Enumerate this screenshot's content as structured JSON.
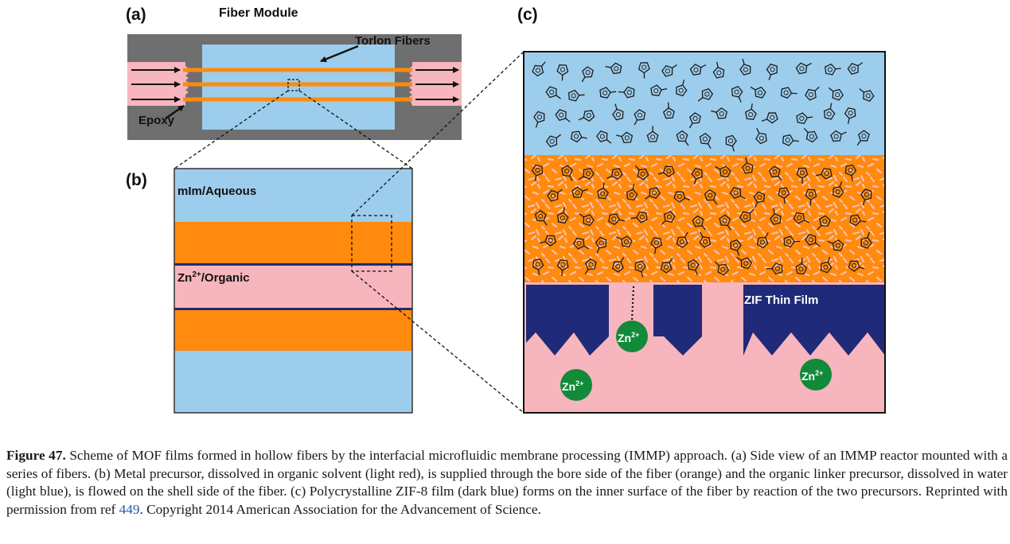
{
  "panels": {
    "a": {
      "label": "(a)",
      "title": "Fiber Module",
      "fibers_label": "Torlon Fibers",
      "epoxy_label": "Epoxy"
    },
    "b": {
      "label": "(b)",
      "aqueous_label": "mIm/Aqueous",
      "organic_base": "Zn",
      "organic_sup": "2+",
      "organic_suffix": "/Organic"
    },
    "c": {
      "label": "(c)",
      "film_label": "ZIF Thin Film",
      "zn_base": "Zn",
      "zn_sup": "2+"
    }
  },
  "colors": {
    "aqueous": "#9dcdec",
    "fiber": "#ff8a0d",
    "organic": "#f7b5bd",
    "film": "#1f2a78",
    "zn_ion": "#118a3a",
    "housing": "#6f6f6f"
  },
  "caption": {
    "label": "Figure 47.",
    "text": " Scheme of MOF films formed in hollow fibers by the interfacial microfluidic membrane processing (IMMP) approach. (a) Side view of an IMMP reactor mounted with a series of fibers. (b) Metal precursor, dissolved in organic solvent (light red), is supplied through the bore side of the fiber (orange) and the organic linker precursor, dissolved in water (light blue), is flowed on the shell side of the fiber. (c) Polycrystalline ZIF-8 film (dark blue) forms on the inner surface of the fiber by reaction of the two precursors. Reprinted with permission from ref ",
    "ref": "449",
    "text_end": ". Copyright 2014 American Association for the Advancement of Science."
  }
}
